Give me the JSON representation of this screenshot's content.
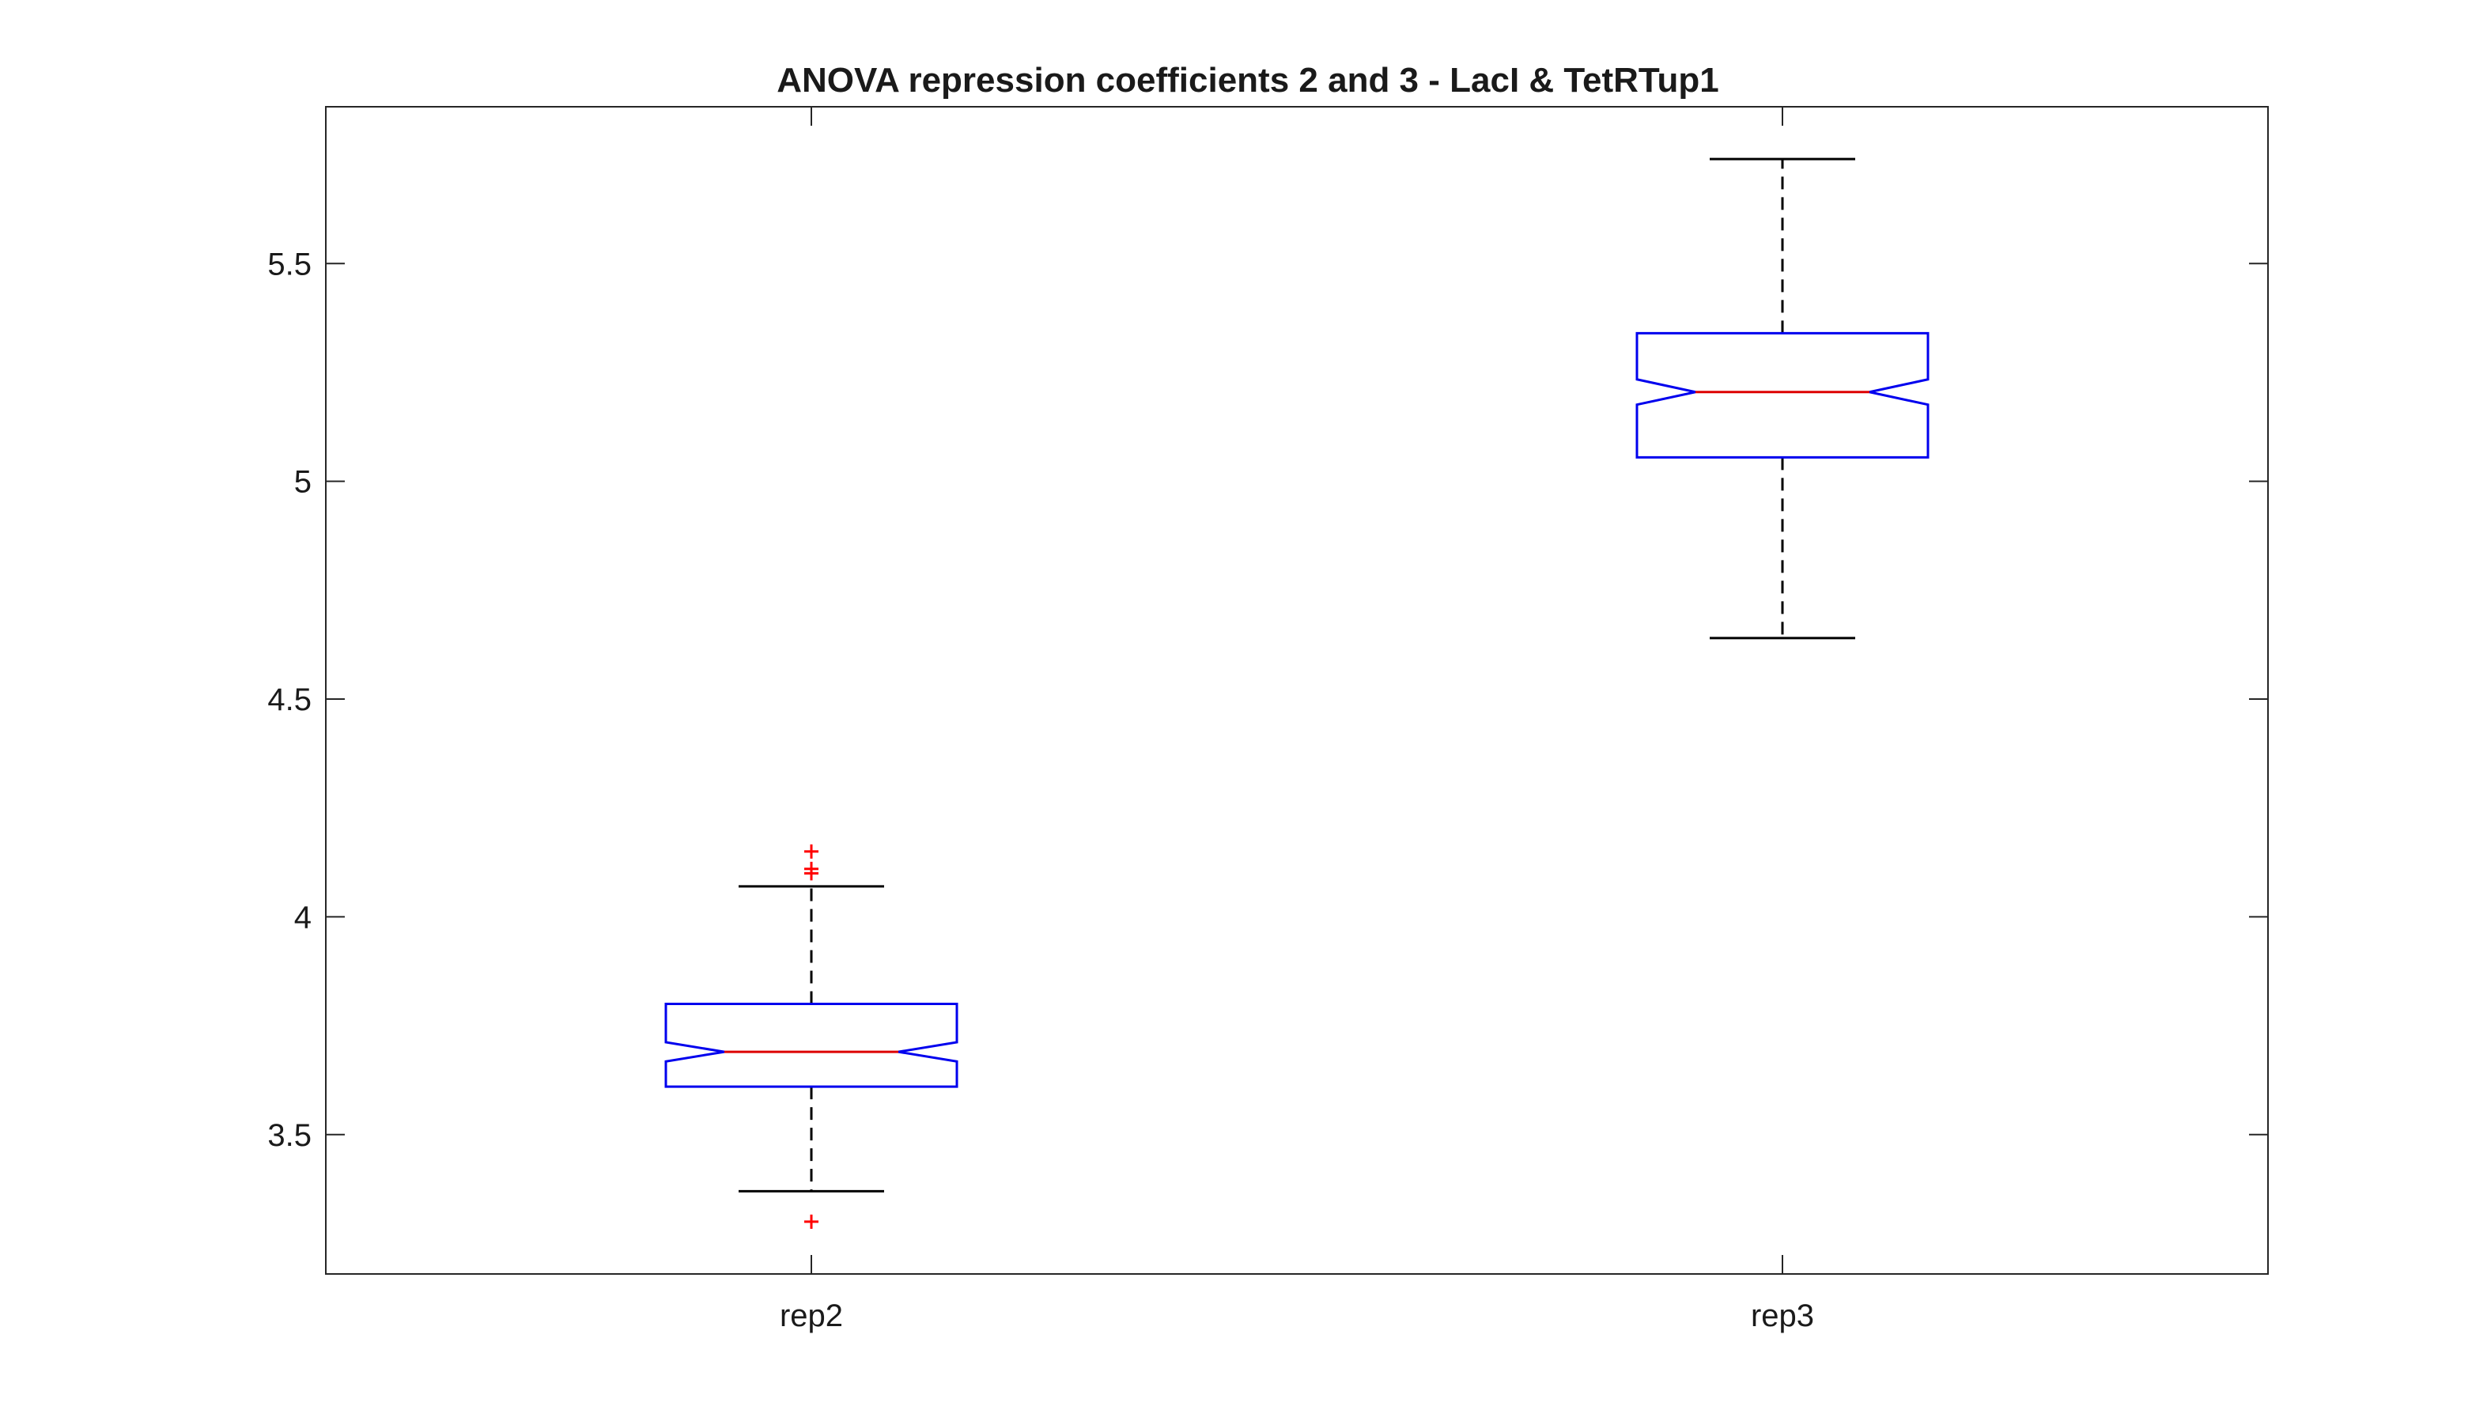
{
  "chart_data": {
    "type": "boxplot",
    "title": "ANOVA repression coefficients 2 and 3 - LacI & TetRTup1",
    "xlabel": "",
    "ylabel": "",
    "categories": [
      "rep2",
      "rep3"
    ],
    "ylim": [
      3.18,
      5.86
    ],
    "yticks": [
      3.5,
      4,
      4.5,
      5,
      5.5
    ],
    "ytick_labels": [
      "3.5",
      "4",
      "4.5",
      "5",
      "5.5"
    ],
    "grid": false,
    "notched": true,
    "boxes": [
      {
        "category": "rep2",
        "whisker_low": 3.37,
        "q1": 3.61,
        "notch_low": 3.668,
        "median": 3.69,
        "notch_high": 3.712,
        "q3": 3.8,
        "whisker_high": 4.07,
        "outliers": [
          3.3,
          4.1,
          4.11,
          4.15
        ]
      },
      {
        "category": "rep3",
        "whisker_low": 4.64,
        "q1": 5.055,
        "notch_low": 5.176,
        "median": 5.205,
        "notch_high": 5.234,
        "q3": 5.34,
        "whisker_high": 5.74,
        "outliers": []
      }
    ],
    "colors": {
      "box": "#0000ee",
      "median": "#dd0000",
      "whisker": "#000000",
      "outlier": "#ff0000",
      "axes": "#262626"
    }
  }
}
